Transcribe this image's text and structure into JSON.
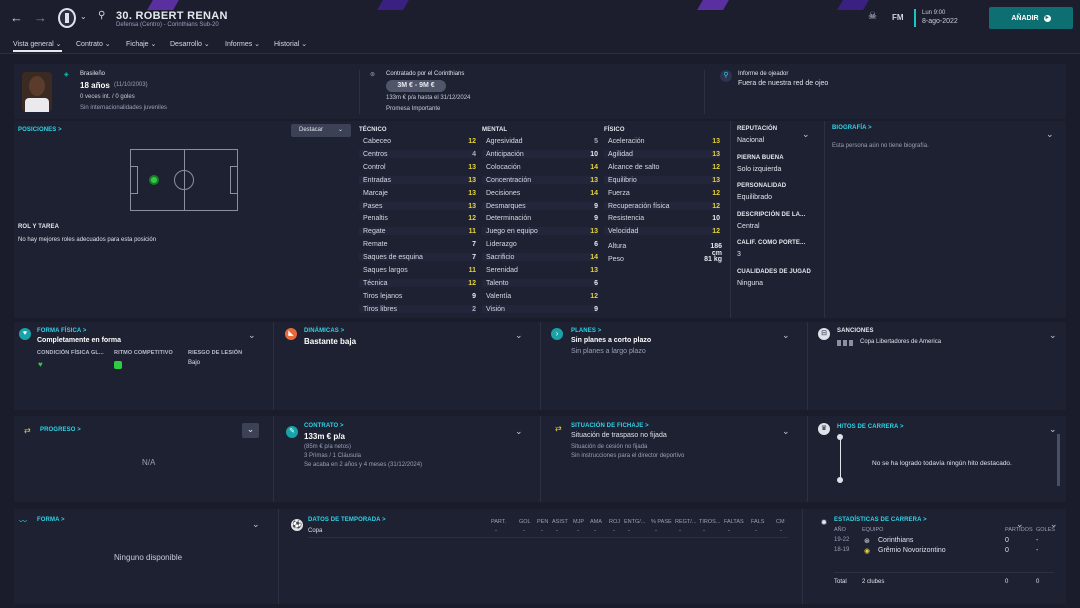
{
  "header": {
    "player_name": "30. ROBERT RENAN",
    "subtitle": "Defensa (Centro) - Corinthians Sub-20",
    "brand": "FM",
    "day": "Lun 9:00",
    "date": "8-ago-2022",
    "add_label": "AÑADIR"
  },
  "tabs": [
    {
      "label": "Vista general"
    },
    {
      "label": "Contrato"
    },
    {
      "label": "Fichaje"
    },
    {
      "label": "Desarrollo"
    },
    {
      "label": "Informes"
    },
    {
      "label": "Historial"
    }
  ],
  "info": {
    "nationality": "Brasileño",
    "age": "18 años",
    "dob": "(11/10/2003)",
    "caps": "0 veces int. / 0 goles",
    "youth": "Sin internacionalidades juveniles",
    "contract_by": "Contratado por el Corinthians",
    "value": "3M € - 9M €",
    "wage": "133m € p/a hasta el 31/12/2024",
    "status": "Promesa Importante",
    "scout_label": "Informe de ojeador",
    "scout_text": "Fuera de nuestra red de ojeo"
  },
  "positions": {
    "title": "POSICIONES >",
    "highlight": "Destacar",
    "role_title": "ROL Y TAREA",
    "role_text": "No hay mejores roles adecuados para esta posición"
  },
  "attributes": {
    "tecnico_title": "TÉCNICO",
    "tecnico": [
      {
        "n": "Cabeceo",
        "v": "12"
      },
      {
        "n": "Centros",
        "v": "4"
      },
      {
        "n": "Control",
        "v": "13"
      },
      {
        "n": "Entradas",
        "v": "13"
      },
      {
        "n": "Marcaje",
        "v": "13"
      },
      {
        "n": "Pases",
        "v": "13"
      },
      {
        "n": "Penaltis",
        "v": "12"
      },
      {
        "n": "Regate",
        "v": "11"
      },
      {
        "n": "Remate",
        "v": "7"
      },
      {
        "n": "Saques de esquina",
        "v": "7"
      },
      {
        "n": "Saques largos",
        "v": "11"
      },
      {
        "n": "Técnica",
        "v": "12"
      },
      {
        "n": "Tiros lejanos",
        "v": "9"
      },
      {
        "n": "Tiros libres",
        "v": "2"
      }
    ],
    "mental_title": "MENTAL",
    "mental": [
      {
        "n": "Agresividad",
        "v": "5"
      },
      {
        "n": "Anticipación",
        "v": "10"
      },
      {
        "n": "Colocación",
        "v": "14"
      },
      {
        "n": "Concentración",
        "v": "13"
      },
      {
        "n": "Decisiones",
        "v": "14"
      },
      {
        "n": "Desmarques",
        "v": "9"
      },
      {
        "n": "Determinación",
        "v": "9"
      },
      {
        "n": "Juego en equipo",
        "v": "13"
      },
      {
        "n": "Liderazgo",
        "v": "6"
      },
      {
        "n": "Sacrificio",
        "v": "14"
      },
      {
        "n": "Serenidad",
        "v": "13"
      },
      {
        "n": "Talento",
        "v": "6"
      },
      {
        "n": "Valentía",
        "v": "12"
      },
      {
        "n": "Visión",
        "v": "9"
      }
    ],
    "fisico_title": "FÍSICO",
    "fisico": [
      {
        "n": "Aceleración",
        "v": "13"
      },
      {
        "n": "Agilidad",
        "v": "13"
      },
      {
        "n": "Alcance de salto",
        "v": "12"
      },
      {
        "n": "Equilibrio",
        "v": "13"
      },
      {
        "n": "Fuerza",
        "v": "12"
      },
      {
        "n": "Recuperación física",
        "v": "12"
      },
      {
        "n": "Resistencia",
        "v": "10"
      },
      {
        "n": "Velocidad",
        "v": "12"
      }
    ],
    "height_label": "Altura",
    "height": "186 cm",
    "weight_label": "Peso",
    "weight": "81 kg"
  },
  "details": [
    {
      "k": "REPUTACIÓN",
      "v": "Nacional"
    },
    {
      "k": "PIERNA BUENA",
      "v": "Solo izquierda"
    },
    {
      "k": "PERSONALIDAD",
      "v": "Equilibrado"
    },
    {
      "k": "DESCRIPCIÓN DE LA...",
      "v": "Central"
    },
    {
      "k": "CALIF. COMO PORTE...",
      "v": "3"
    },
    {
      "k": "CUALIDADES DE JUGAD",
      "v": "Ninguna"
    }
  ],
  "bio": {
    "title": "BIOGRAFÍA >",
    "text": "Esta persona aún no tiene biografía."
  },
  "forma_fisica": {
    "title": "FORMA FÍSICA >",
    "value": "Completamente en forma",
    "c1": "CONDICIÓN FÍSICA GL...",
    "c2": "RITMO COMPETITIVO",
    "c3": "RIESGO DE LESIÓN",
    "c3v": "Bajo"
  },
  "dinamicas": {
    "title": "DINÁMICAS >",
    "value": "Bastante baja"
  },
  "planes": {
    "title": "PLANES >",
    "v1": "Sin planes a corto plazo",
    "v2": "Sin planes a largo plazo"
  },
  "sanciones": {
    "title": "SANCIONES",
    "value": "Copa Libertadores de America"
  },
  "progreso": {
    "title": "PROGRESO >",
    "value": "N/A"
  },
  "contrato": {
    "title": "CONTRATO >",
    "wage": "133m € p/a",
    "net": "(85m € p/a netos)",
    "bonus": "3 Primas / 1 Cláusula",
    "ends": "Se acaba en 2 años y 4 meses (31/12/2024)"
  },
  "fichaje": {
    "title": "SITUACIÓN DE FICHAJE >",
    "v1": "Situación de traspaso no fijada",
    "v2": "Situación de cesión no fijada",
    "v3": "Sin instrucciones para el director deportivo"
  },
  "hitos": {
    "title": "HITOS DE CARRERA >",
    "text": "No se ha logrado todavía ningún hito destacado."
  },
  "forma": {
    "title": "FORMA >",
    "value": "Ninguno disponible"
  },
  "temporada": {
    "title": "DATOS DE TEMPORADA >",
    "cols": [
      "PART.",
      "GOL",
      "PEN",
      "ASIST",
      "MJP",
      "AMA",
      "ROJ",
      "ENTG/...",
      "% PASE",
      "REGT/...",
      "TIROS...",
      "FALTAS",
      "FALS",
      "CM"
    ],
    "row": "Copa",
    "dash": "-"
  },
  "carrera": {
    "title": "ESTADÍSTICAS DE CARRERA >",
    "h_year": "AÑO",
    "h_team": "EQUIPO",
    "h_part": "PARTIDOS",
    "h_goals": "GOLES",
    "rows": [
      {
        "y": "19-22",
        "t": "Corinthians",
        "p": "0",
        "g": "-"
      },
      {
        "y": "18-19",
        "t": "Grêmio Novorizontino",
        "p": "0",
        "g": "-"
      }
    ],
    "total": "Total",
    "total_clubs": "2 clubes",
    "total_p": "0",
    "total_g": "0"
  },
  "colors": {
    "accent": "#2fd4e8",
    "yellow": "#e3d23a",
    "green": "#2ecc40",
    "bg": "#1a1c2b",
    "card": "#1e2132"
  }
}
